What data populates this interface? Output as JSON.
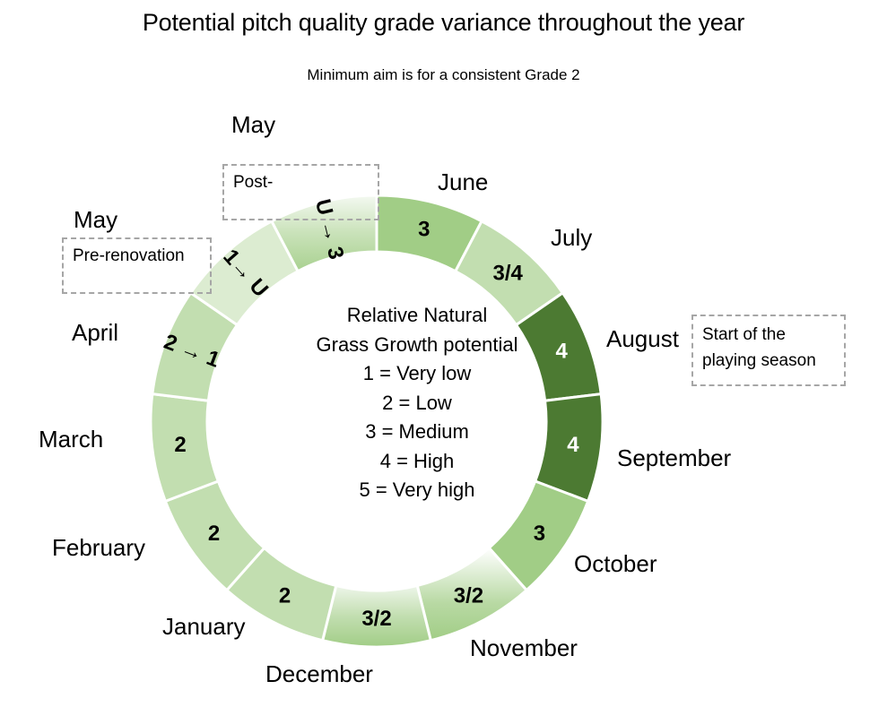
{
  "title": "Potential pitch quality grade variance throughout the year",
  "subtitle": "Minimum aim is for a consistent Grade 2",
  "legend": {
    "heading_line1": "Relative Natural",
    "heading_line2": "Grass Growth potential",
    "items": [
      "1 = Very low",
      "2 = Low",
      "3 = Medium",
      "4 = High",
      "5 = Very high"
    ]
  },
  "notes": {
    "post_renovation": "Post-",
    "pre_renovation": "Pre-renovation",
    "season_start_line1": "Start of the",
    "season_start_line2": "playing season"
  },
  "month_labels": {
    "may_post": "May",
    "may_pre": "May",
    "april": "April",
    "march": "March",
    "february": "February",
    "january": "January",
    "december": "December",
    "november": "November",
    "october": "October",
    "september": "September",
    "august": "August",
    "july": "July",
    "june": "June"
  },
  "colors": {
    "dark_green": "#4c7a32",
    "medium_green": "#a1cd86",
    "light_green": "#c2deb0",
    "pale_green": "#dcecd1",
    "note_border": "#a6a6a6"
  },
  "chart_data": {
    "type": "donut",
    "title": "Potential pitch quality grade variance throughout the year",
    "subtitle": "Minimum aim is for a consistent Grade 2",
    "segments": [
      {
        "month": "June",
        "grade": "3",
        "color": "#a1cd86"
      },
      {
        "month": "July",
        "grade": "3/4",
        "color": "#c2deb0"
      },
      {
        "month": "August",
        "grade": "4",
        "color": "#4c7a32"
      },
      {
        "month": "September",
        "grade": "4",
        "color": "#4c7a32"
      },
      {
        "month": "October",
        "grade": "3",
        "color": "#a1cd86"
      },
      {
        "month": "November",
        "grade": "3/2",
        "color": "gradient"
      },
      {
        "month": "December",
        "grade": "3/2",
        "color": "gradient"
      },
      {
        "month": "January",
        "grade": "2",
        "color": "#c2deb0"
      },
      {
        "month": "February",
        "grade": "2",
        "color": "#c2deb0"
      },
      {
        "month": "March",
        "grade": "2",
        "color": "#c2deb0"
      },
      {
        "month": "April",
        "grade": "2 → 1",
        "color": "#c2deb0"
      },
      {
        "month": "May (Pre-renovation)",
        "grade": "1→ U",
        "color": "#dcecd1"
      },
      {
        "month": "May (Post-renovation)",
        "grade": "U → 3",
        "color": "gradient"
      }
    ],
    "legend": [
      "1 = Very low",
      "2 = Low",
      "3 = Medium",
      "4 = High",
      "5 = Very high"
    ],
    "annotations": [
      "Start of the playing season (August)",
      "Pre-renovation (May)",
      "Post- (May)"
    ]
  }
}
